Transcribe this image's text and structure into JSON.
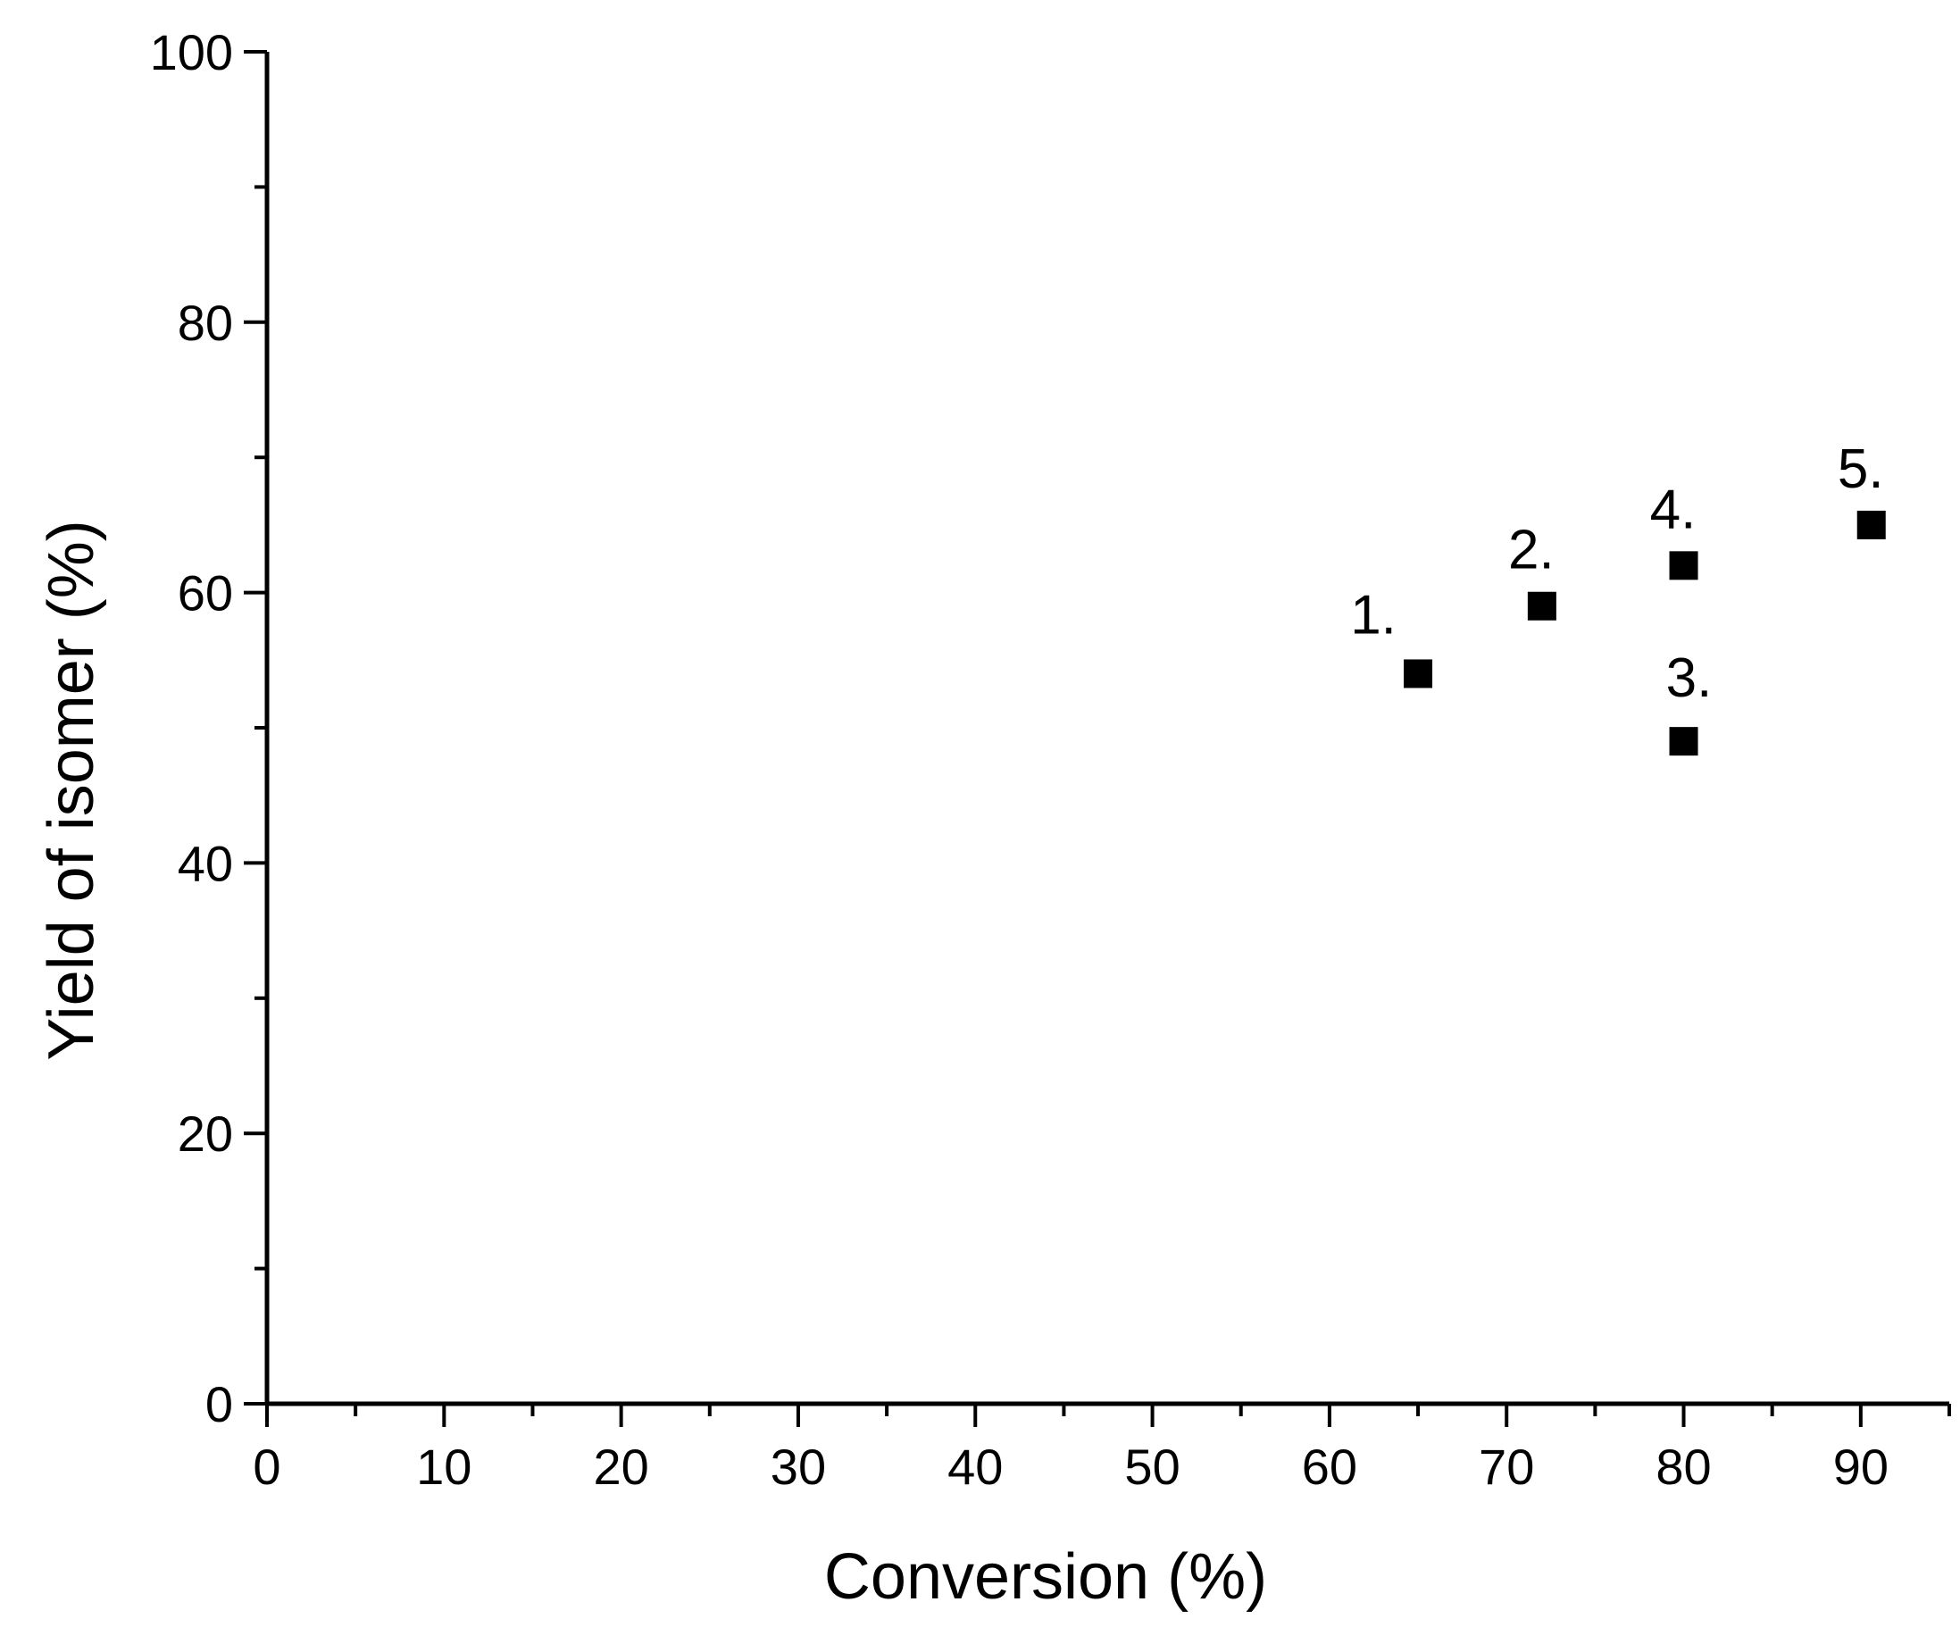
{
  "chart_data": {
    "type": "scatter",
    "xlabel": "Conversion (%)",
    "ylabel": "Yield of isomer (%)",
    "xlim": [
      0,
      95
    ],
    "ylim": [
      0,
      100
    ],
    "x_ticks": [
      0,
      10,
      20,
      30,
      40,
      50,
      60,
      70,
      80,
      90
    ],
    "x_tick_labels": [
      "0",
      "10",
      "20",
      "30",
      "40",
      "50",
      "60",
      "70",
      "80",
      "90"
    ],
    "x_minor_ticks": [
      5,
      15,
      25,
      35,
      45,
      55,
      65,
      75,
      85,
      95
    ],
    "y_ticks": [
      0,
      20,
      40,
      60,
      80,
      100
    ],
    "y_tick_labels": [
      "0",
      "20",
      "40",
      "60",
      "80",
      "100"
    ],
    "y_minor_ticks": [
      10,
      30,
      50,
      70,
      90
    ],
    "grid": false,
    "legend": "none",
    "marker": "square",
    "marker_color": "#000000",
    "series": [
      {
        "points": [
          {
            "x": 65,
            "y": 54,
            "label": "1."
          },
          {
            "x": 72,
            "y": 59,
            "label": "2."
          },
          {
            "x": 80,
            "y": 49,
            "label": "3."
          },
          {
            "x": 80,
            "y": 62,
            "label": "4."
          },
          {
            "x": 90.6,
            "y": 65,
            "label": "5."
          }
        ]
      }
    ]
  }
}
